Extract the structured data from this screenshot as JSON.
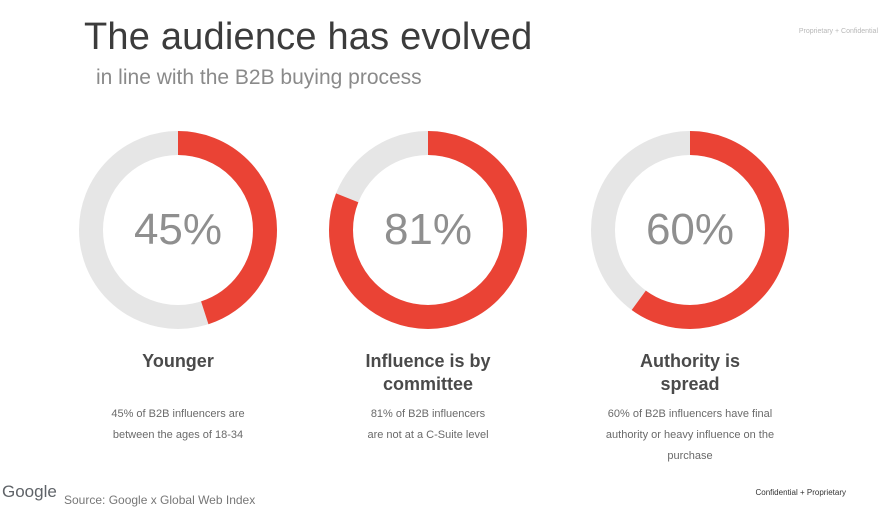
{
  "header": {
    "title": "The audience has evolved",
    "subtitle": "in line with the B2B buying process",
    "corner_tag": "Proprietary + Confidential"
  },
  "chart_data": [
    {
      "type": "pie",
      "value": 45,
      "value_label": "45%",
      "title": "Younger",
      "description": "45% of B2B influencers are between the ages of 18-34"
    },
    {
      "type": "pie",
      "value": 81,
      "value_label": "81%",
      "title": "Influence is by committee",
      "description": "81% of B2B influencers are not at a C-Suite level"
    },
    {
      "type": "pie",
      "value": 60,
      "value_label": "60%",
      "title": "Authority is spread",
      "description": "60% of B2B influencers have final authority or heavy influence on the purchase"
    }
  ],
  "colors": {
    "accent": "#ea4335",
    "track": "#e6e6e6"
  },
  "footer": {
    "logo": "Google",
    "source": "Source: Google x Global Web Index",
    "tag": "Confidential + Proprietary"
  }
}
